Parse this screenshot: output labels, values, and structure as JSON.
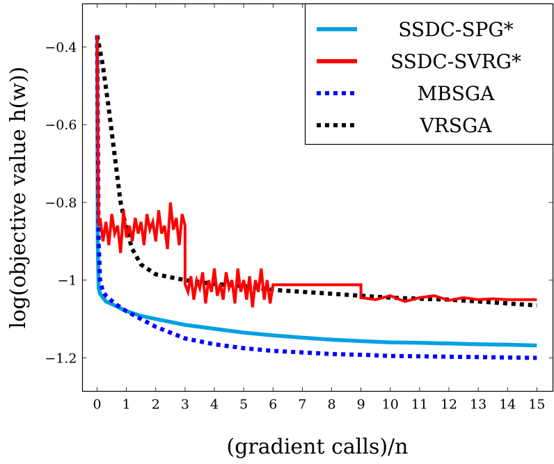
{
  "chart_data": {
    "type": "line",
    "title": "",
    "xlabel": "(gradient calls)/n",
    "ylabel": "log(objective value h(w))",
    "xlim": [
      -0.5,
      15.55
    ],
    "ylim": [
      -1.286,
      -0.289
    ],
    "xticks": [
      0,
      1,
      2,
      3,
      4,
      5,
      6,
      7,
      8,
      9,
      10,
      11,
      12,
      13,
      14,
      15
    ],
    "xtick_labels": [
      "0",
      "1",
      "2",
      "3",
      "4",
      "5",
      "6",
      "7",
      "8",
      "9",
      "10",
      "11",
      "12",
      "13",
      "14",
      "15"
    ],
    "yticks": [
      -1.2,
      -1.0,
      -0.8,
      -0.6,
      -0.4
    ],
    "ytick_labels": [
      "−1.2",
      "−1",
      "−0.8",
      "−0.6",
      "−0.4"
    ],
    "grid": false,
    "legend_position": "top-right",
    "series": [
      {
        "name": "SSDC-SPG*",
        "color": "#00a0e3",
        "style": "solid",
        "x": [
          0,
          0.02,
          0.05,
          0.1,
          0.3,
          0.6,
          1,
          1.5,
          2,
          3,
          4,
          5,
          6,
          7,
          8,
          9,
          10,
          11,
          12,
          13,
          14,
          15
        ],
        "y": [
          -0.37,
          -0.9,
          -1.02,
          -1.035,
          -1.055,
          -1.065,
          -1.08,
          -1.092,
          -1.1,
          -1.115,
          -1.125,
          -1.135,
          -1.142,
          -1.148,
          -1.153,
          -1.157,
          -1.16,
          -1.161,
          -1.163,
          -1.165,
          -1.166,
          -1.168
        ]
      },
      {
        "name": "SSDC-SVRG*",
        "color": "#ff0000",
        "style": "solid",
        "x": [
          0,
          0.05,
          0.1,
          0.2,
          0.3,
          0.4,
          0.5,
          0.6,
          0.7,
          0.8,
          0.9,
          1.0,
          1.1,
          1.2,
          1.3,
          1.4,
          1.5,
          1.6,
          1.7,
          1.8,
          1.9,
          2.0,
          2.1,
          2.2,
          2.3,
          2.4,
          2.5,
          2.6,
          2.7,
          2.8,
          2.9,
          3.0,
          3.0,
          3.1,
          3.2,
          3.3,
          3.4,
          3.5,
          3.6,
          3.7,
          3.8,
          3.9,
          4.0,
          4.1,
          4.2,
          4.3,
          4.4,
          4.5,
          4.6,
          4.7,
          4.8,
          4.9,
          5.0,
          5.1,
          5.2,
          5.3,
          5.4,
          5.5,
          5.6,
          5.7,
          5.8,
          5.9,
          6.0,
          9.0,
          9.0,
          9.5,
          10,
          10.5,
          11,
          11.5,
          12,
          12.5,
          13,
          13.5,
          14,
          14.5,
          15
        ],
        "y": [
          -0.37,
          -0.86,
          -0.84,
          -0.9,
          -0.85,
          -0.91,
          -0.83,
          -0.88,
          -0.86,
          -0.93,
          -0.82,
          -0.89,
          -0.86,
          -0.9,
          -0.84,
          -0.88,
          -0.85,
          -0.91,
          -0.83,
          -0.87,
          -0.85,
          -0.9,
          -0.82,
          -0.88,
          -0.86,
          -0.92,
          -0.8,
          -0.87,
          -0.84,
          -0.91,
          -0.83,
          -0.86,
          -1.01,
          -1.03,
          -0.99,
          -1.05,
          -1.0,
          -1.02,
          -0.98,
          -1.06,
          -1.0,
          -1.03,
          -0.97,
          -1.04,
          -1.01,
          -1.05,
          -0.98,
          -1.02,
          -1.0,
          -1.06,
          -0.97,
          -1.03,
          -1.0,
          -1.05,
          -0.99,
          -1.07,
          -1.0,
          -1.03,
          -0.97,
          -1.05,
          -1.0,
          -1.06,
          -1.012,
          -1.012,
          -1.045,
          -1.05,
          -1.04,
          -1.055,
          -1.045,
          -1.04,
          -1.052,
          -1.045,
          -1.05,
          -1.048,
          -1.05,
          -1.05,
          -1.05
        ]
      },
      {
        "name": "MBSGA",
        "color": "#0000ff",
        "style": "dotted",
        "x": [
          0,
          0.05,
          0.1,
          0.2,
          0.3,
          0.6,
          1,
          1.5,
          2,
          3,
          4,
          5,
          6,
          7,
          8,
          9,
          10,
          11,
          12,
          13,
          14,
          15
        ],
        "y": [
          -0.37,
          -0.9,
          -1.0,
          -1.03,
          -1.04,
          -1.06,
          -1.08,
          -1.1,
          -1.12,
          -1.15,
          -1.165,
          -1.175,
          -1.182,
          -1.186,
          -1.19,
          -1.192,
          -1.195,
          -1.196,
          -1.197,
          -1.198,
          -1.199,
          -1.2
        ]
      },
      {
        "name": "VRSGA",
        "color": "#000000",
        "style": "dotted",
        "x": [
          0,
          0.2,
          0.4,
          0.6,
          0.8,
          1,
          1.2,
          1.5,
          2,
          3,
          4,
          5,
          6,
          7,
          8,
          9,
          10,
          11,
          12,
          13,
          14,
          15
        ],
        "y": [
          -0.37,
          -0.45,
          -0.56,
          -0.68,
          -0.8,
          -0.87,
          -0.92,
          -0.96,
          -0.985,
          -1.0,
          -1.01,
          -1.015,
          -1.025,
          -1.03,
          -1.035,
          -1.04,
          -1.045,
          -1.048,
          -1.05,
          -1.055,
          -1.06,
          -1.065
        ]
      }
    ]
  }
}
